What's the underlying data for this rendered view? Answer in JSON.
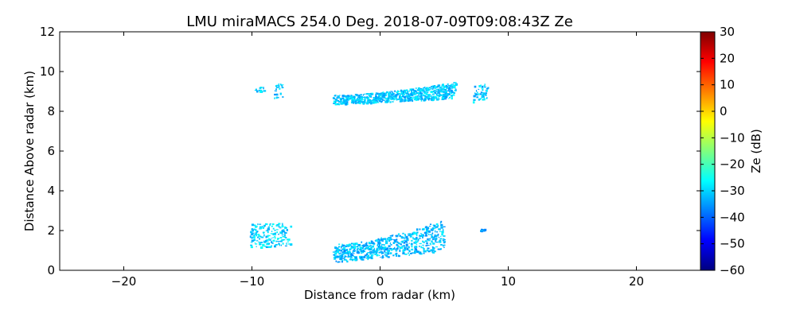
{
  "chart_data": {
    "type": "heatmap",
    "title": "LMU miraMACS 254.0 Deg. 2018-07-09T09:08:43Z  Ze",
    "xlabel": "Distance from radar (km)",
    "ylabel": "Distance Above radar  (km)",
    "xlim": [
      -25,
      25
    ],
    "ylim": [
      0,
      12
    ],
    "xticks": [
      -20,
      -10,
      0,
      10,
      20
    ],
    "yticks": [
      0,
      2,
      4,
      6,
      8,
      10,
      12
    ],
    "xtick_labels": [
      "−20",
      "−10",
      "0",
      "10",
      "20"
    ],
    "ytick_labels": [
      "0",
      "2",
      "4",
      "6",
      "8",
      "10",
      "12"
    ],
    "grid": false,
    "colorbar": {
      "label": "Ze (dB)",
      "range": [
        -60,
        30
      ],
      "ticks": [
        30,
        20,
        10,
        0,
        -10,
        -20,
        -30,
        -40,
        -50,
        -60
      ],
      "tick_labels": [
        "30",
        "20",
        "10",
        "0",
        "−10",
        "−20",
        "−30",
        "−40",
        "−50",
        "−60"
      ],
      "colormap": "jet",
      "colors": [
        "#00007f",
        "#0000ff",
        "#007fff",
        "#00ffff",
        "#7fff7f",
        "#ffff00",
        "#ff7f00",
        "#ff0000",
        "#7f0000"
      ]
    },
    "echoes": [
      {
        "x": [
          -3.7,
          5.9
        ],
        "y": [
          8.3,
          9.5
        ],
        "ze": -31
      },
      {
        "x": [
          -9.8,
          -9.1
        ],
        "y": [
          9.0,
          9.3
        ],
        "ze": -30
      },
      {
        "x": [
          -8.3,
          -7.6
        ],
        "y": [
          8.7,
          9.4
        ],
        "ze": -31
      },
      {
        "x": [
          7.2,
          8.4
        ],
        "y": [
          8.5,
          9.4
        ],
        "ze": -31
      },
      {
        "x": [
          -10.2,
          -7.0
        ],
        "y": [
          1.2,
          2.4
        ],
        "ze": -30
      },
      {
        "x": [
          -3.7,
          5.0
        ],
        "y": [
          0.3,
          2.6
        ],
        "ze": -32
      },
      {
        "x": [
          7.8,
          8.1
        ],
        "y": [
          2.0,
          2.1
        ],
        "ze": -33
      }
    ]
  }
}
